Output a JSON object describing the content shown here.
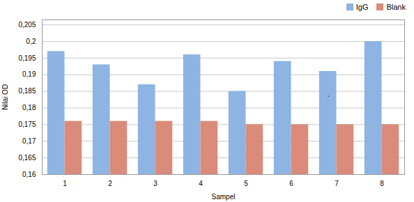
{
  "chart_data": {
    "type": "bar",
    "categories": [
      "1",
      "2",
      "3",
      "4",
      "5",
      "6",
      "7",
      "8"
    ],
    "series": [
      {
        "name": "IgG",
        "color": "#8DB4E2",
        "values": [
          0.197,
          0.193,
          0.187,
          0.196,
          0.185,
          0.194,
          0.191,
          0.2
        ]
      },
      {
        "name": "Blank",
        "color": "#DA8B7A",
        "values": [
          0.176,
          0.176,
          0.176,
          0.176,
          0.175,
          0.175,
          0.175,
          0.175
        ]
      }
    ],
    "xlabel": "Sampel",
    "ylabel": "Nilai OD",
    "ylim": [
      0.16,
      0.2065
    ],
    "yticks": [
      {
        "value": 0.16,
        "label": "0,16"
      },
      {
        "value": 0.165,
        "label": "0,165"
      },
      {
        "value": 0.17,
        "label": "0,17"
      },
      {
        "value": 0.175,
        "label": "0,175"
      },
      {
        "value": 0.18,
        "label": "0,18"
      },
      {
        "value": 0.185,
        "label": "0,185"
      },
      {
        "value": 0.19,
        "label": "0,19"
      },
      {
        "value": 0.195,
        "label": "0,195"
      },
      {
        "value": 0.2,
        "label": "0,2"
      },
      {
        "value": 0.205,
        "label": "0,205"
      }
    ],
    "grid": true,
    "legend": "upper right",
    "annotations": [
      {
        "text": "·",
        "x": 5.82,
        "y": 0.1836
      }
    ]
  }
}
